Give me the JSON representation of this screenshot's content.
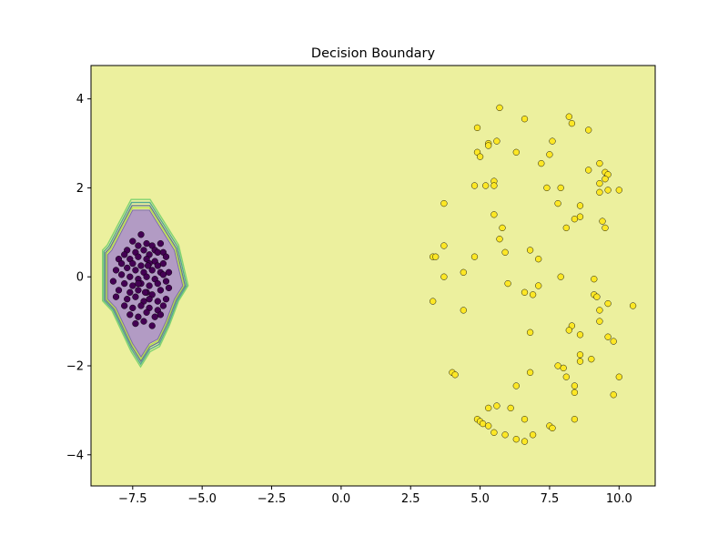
{
  "chart_data": {
    "type": "scatter",
    "title": "Decision Boundary",
    "xlabel": "",
    "ylabel": "",
    "xlim": [
      -9.0,
      11.3
    ],
    "ylim": [
      -4.7,
      4.75
    ],
    "xticks": [
      -7.5,
      -5.0,
      -2.5,
      0.0,
      2.5,
      5.0,
      7.5,
      10.0
    ],
    "xtick_labels": [
      "−7.5",
      "−5.0",
      "−2.5",
      "0.0",
      "2.5",
      "5.0",
      "7.5",
      "10.0"
    ],
    "yticks": [
      -4,
      -2,
      0,
      2,
      4
    ],
    "ytick_labels": [
      "−4",
      "−2",
      "0",
      "2",
      "4"
    ],
    "grid": false,
    "background_region_color": "#ecf09e",
    "boundary_region": {
      "class": 0,
      "color": "#b29bc4",
      "edge_colors": [
        "#5ec962",
        "#21918c",
        "#3b528b",
        "#aadc32"
      ],
      "polygon": [
        [
          -8.25,
          0.6
        ],
        [
          -7.5,
          1.5
        ],
        [
          -6.9,
          1.5
        ],
        [
          -6.6,
          1.2
        ],
        [
          -6.0,
          0.6
        ],
        [
          -5.7,
          -0.2
        ],
        [
          -6.0,
          -0.5
        ],
        [
          -6.3,
          -1.0
        ],
        [
          -6.6,
          -1.4
        ],
        [
          -6.9,
          -1.5
        ],
        [
          -7.2,
          -1.8
        ],
        [
          -7.5,
          -1.5
        ],
        [
          -8.1,
          -0.7
        ],
        [
          -8.4,
          -0.5
        ],
        [
          -8.4,
          0.5
        ]
      ]
    },
    "series": [
      {
        "class": 0,
        "color": "#440154",
        "points": [
          [
            -7.2,
            0.95
          ],
          [
            -7.5,
            0.8
          ],
          [
            -7.3,
            0.7
          ],
          [
            -7.0,
            0.75
          ],
          [
            -6.8,
            0.7
          ],
          [
            -6.5,
            0.75
          ],
          [
            -6.7,
            0.6
          ],
          [
            -7.7,
            0.6
          ],
          [
            -7.8,
            0.5
          ],
          [
            -7.4,
            0.55
          ],
          [
            -7.1,
            0.6
          ],
          [
            -6.9,
            0.5
          ],
          [
            -6.6,
            0.55
          ],
          [
            -6.4,
            0.55
          ],
          [
            -8.0,
            0.4
          ],
          [
            -7.6,
            0.4
          ],
          [
            -7.3,
            0.45
          ],
          [
            -7.0,
            0.4
          ],
          [
            -6.7,
            0.35
          ],
          [
            -6.3,
            0.45
          ],
          [
            -7.9,
            0.3
          ],
          [
            -7.5,
            0.3
          ],
          [
            -7.2,
            0.25
          ],
          [
            -6.9,
            0.3
          ],
          [
            -6.6,
            0.25
          ],
          [
            -6.4,
            0.3
          ],
          [
            -8.1,
            0.15
          ],
          [
            -7.7,
            0.2
          ],
          [
            -7.4,
            0.15
          ],
          [
            -7.1,
            0.1
          ],
          [
            -6.8,
            0.15
          ],
          [
            -6.5,
            0.1
          ],
          [
            -6.2,
            0.1
          ],
          [
            -7.9,
            0.05
          ],
          [
            -7.6,
            0.0
          ],
          [
            -7.3,
            -0.05
          ],
          [
            -7.0,
            0.0
          ],
          [
            -6.7,
            -0.05
          ],
          [
            -6.4,
            0.05
          ],
          [
            -8.2,
            -0.1
          ],
          [
            -7.8,
            -0.15
          ],
          [
            -7.5,
            -0.2
          ],
          [
            -7.2,
            -0.15
          ],
          [
            -6.9,
            -0.2
          ],
          [
            -6.6,
            -0.15
          ],
          [
            -6.3,
            -0.1
          ],
          [
            -8.0,
            -0.3
          ],
          [
            -7.6,
            -0.35
          ],
          [
            -7.3,
            -0.3
          ],
          [
            -7.0,
            -0.35
          ],
          [
            -6.8,
            -0.4
          ],
          [
            -6.5,
            -0.3
          ],
          [
            -6.2,
            -0.25
          ],
          [
            -8.1,
            -0.45
          ],
          [
            -7.7,
            -0.5
          ],
          [
            -7.4,
            -0.45
          ],
          [
            -7.1,
            -0.55
          ],
          [
            -6.9,
            -0.5
          ],
          [
            -6.6,
            -0.55
          ],
          [
            -6.3,
            -0.5
          ],
          [
            -7.8,
            -0.65
          ],
          [
            -7.5,
            -0.7
          ],
          [
            -7.2,
            -0.65
          ],
          [
            -6.9,
            -0.7
          ],
          [
            -6.6,
            -0.75
          ],
          [
            -6.4,
            -0.65
          ],
          [
            -7.6,
            -0.85
          ],
          [
            -7.3,
            -0.9
          ],
          [
            -7.0,
            -0.8
          ],
          [
            -6.7,
            -0.9
          ],
          [
            -6.5,
            -0.85
          ],
          [
            -7.4,
            -1.05
          ],
          [
            -7.1,
            -1.0
          ],
          [
            -6.8,
            -1.1
          ],
          [
            -7.3,
            -0.15
          ],
          [
            -6.95,
            0.25
          ],
          [
            -7.05,
            -0.35
          ]
        ]
      },
      {
        "class": 1,
        "color": "#fde725",
        "points": [
          [
            5.7,
            3.8
          ],
          [
            8.2,
            3.6
          ],
          [
            6.6,
            3.55
          ],
          [
            8.3,
            3.45
          ],
          [
            4.9,
            3.35
          ],
          [
            8.9,
            3.3
          ],
          [
            5.3,
            3.0
          ],
          [
            5.6,
            3.05
          ],
          [
            7.6,
            3.05
          ],
          [
            5.3,
            2.95
          ],
          [
            4.9,
            2.8
          ],
          [
            6.3,
            2.8
          ],
          [
            7.5,
            2.75
          ],
          [
            5.0,
            2.7
          ],
          [
            7.2,
            2.55
          ],
          [
            9.3,
            2.55
          ],
          [
            8.9,
            2.4
          ],
          [
            9.5,
            2.35
          ],
          [
            9.6,
            2.3
          ],
          [
            9.5,
            2.2
          ],
          [
            5.5,
            2.15
          ],
          [
            9.3,
            2.1
          ],
          [
            4.8,
            2.05
          ],
          [
            5.2,
            2.05
          ],
          [
            5.5,
            2.05
          ],
          [
            7.4,
            2.0
          ],
          [
            7.9,
            2.0
          ],
          [
            9.6,
            1.95
          ],
          [
            10.0,
            1.95
          ],
          [
            9.3,
            1.9
          ],
          [
            3.7,
            1.65
          ],
          [
            7.8,
            1.65
          ],
          [
            8.6,
            1.6
          ],
          [
            5.5,
            1.4
          ],
          [
            8.6,
            1.35
          ],
          [
            8.4,
            1.3
          ],
          [
            9.4,
            1.25
          ],
          [
            5.8,
            1.1
          ],
          [
            8.1,
            1.1
          ],
          [
            9.5,
            1.1
          ],
          [
            5.7,
            0.85
          ],
          [
            3.7,
            0.7
          ],
          [
            6.8,
            0.6
          ],
          [
            5.9,
            0.55
          ],
          [
            3.3,
            0.45
          ],
          [
            3.4,
            0.45
          ],
          [
            4.8,
            0.45
          ],
          [
            7.1,
            0.4
          ],
          [
            4.4,
            0.1
          ],
          [
            3.7,
            0.0
          ],
          [
            7.9,
            0.0
          ],
          [
            9.1,
            -0.05
          ],
          [
            6.0,
            -0.15
          ],
          [
            7.1,
            -0.2
          ],
          [
            6.6,
            -0.35
          ],
          [
            6.9,
            -0.4
          ],
          [
            9.1,
            -0.4
          ],
          [
            9.2,
            -0.45
          ],
          [
            3.3,
            -0.55
          ],
          [
            9.6,
            -0.6
          ],
          [
            10.5,
            -0.65
          ],
          [
            4.4,
            -0.75
          ],
          [
            9.3,
            -0.75
          ],
          [
            9.3,
            -1.0
          ],
          [
            8.3,
            -1.1
          ],
          [
            8.2,
            -1.2
          ],
          [
            6.8,
            -1.25
          ],
          [
            8.6,
            -1.3
          ],
          [
            9.6,
            -1.35
          ],
          [
            9.8,
            -1.45
          ],
          [
            8.6,
            -1.75
          ],
          [
            9.0,
            -1.85
          ],
          [
            8.6,
            -1.9
          ],
          [
            7.8,
            -2.0
          ],
          [
            8.0,
            -2.05
          ],
          [
            4.0,
            -2.15
          ],
          [
            6.8,
            -2.15
          ],
          [
            4.1,
            -2.2
          ],
          [
            10.0,
            -2.25
          ],
          [
            8.1,
            -2.25
          ],
          [
            6.3,
            -2.45
          ],
          [
            8.4,
            -2.45
          ],
          [
            8.4,
            -2.6
          ],
          [
            9.8,
            -2.65
          ],
          [
            5.6,
            -2.9
          ],
          [
            5.3,
            -2.95
          ],
          [
            6.1,
            -2.95
          ],
          [
            8.4,
            -3.2
          ],
          [
            4.9,
            -3.2
          ],
          [
            6.6,
            -3.2
          ],
          [
            5.0,
            -3.25
          ],
          [
            5.1,
            -3.3
          ],
          [
            7.5,
            -3.35
          ],
          [
            5.3,
            -3.35
          ],
          [
            7.6,
            -3.4
          ],
          [
            5.5,
            -3.5
          ],
          [
            5.9,
            -3.55
          ],
          [
            6.9,
            -3.55
          ],
          [
            6.3,
            -3.65
          ],
          [
            6.6,
            -3.7
          ]
        ]
      }
    ]
  }
}
